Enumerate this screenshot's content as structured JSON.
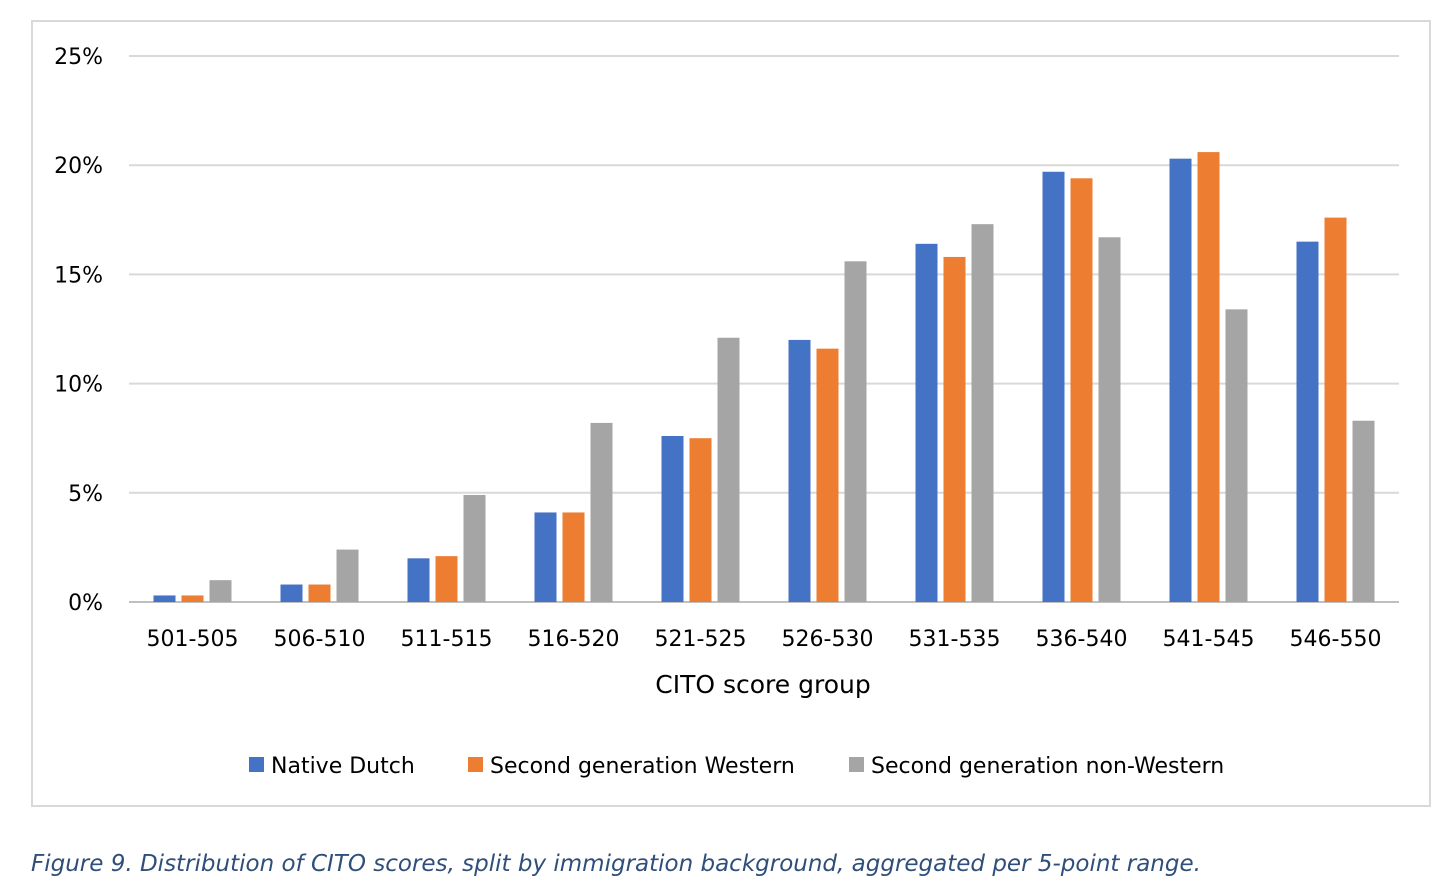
{
  "caption": "Figure 9. Distribution of CITO scores, split by immigration background, aggregated per 5-point range.",
  "chart_data": {
    "type": "bar",
    "title": "",
    "xlabel": "CITO score group",
    "ylabel": "",
    "ylim": [
      0,
      25
    ],
    "yticks": [
      0,
      5,
      10,
      15,
      20,
      25
    ],
    "ytick_labels": [
      "0%",
      "5%",
      "10%",
      "15%",
      "20%",
      "25%"
    ],
    "grid": true,
    "legend_position": "bottom",
    "categories": [
      "501-505",
      "506-510",
      "511-515",
      "516-520",
      "521-525",
      "526-530",
      "531-535",
      "536-540",
      "541-545",
      "546-550"
    ],
    "series": [
      {
        "name": "Native Dutch",
        "color": "#4472c4",
        "values": [
          0.3,
          0.8,
          2.0,
          4.1,
          7.6,
          12.0,
          16.4,
          19.7,
          20.3,
          16.5
        ]
      },
      {
        "name": "Second generation Western",
        "color": "#ed7d31",
        "values": [
          0.3,
          0.8,
          2.1,
          4.1,
          7.5,
          11.6,
          15.8,
          19.4,
          20.6,
          17.6
        ]
      },
      {
        "name": "Second generation non-Western",
        "color": "#a5a5a5",
        "values": [
          1.0,
          2.4,
          4.9,
          8.2,
          12.1,
          15.6,
          17.3,
          16.7,
          13.4,
          8.3
        ]
      }
    ]
  }
}
